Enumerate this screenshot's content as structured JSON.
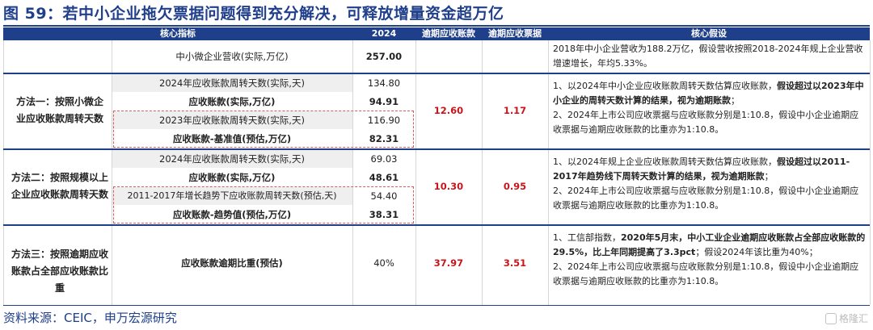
{
  "title": "图 59：若中小企业拖欠票据问题得到充分解决，可释放增量资金超万亿",
  "headers": [
    "核心指标",
    "2024",
    "逾期应收账款",
    "逾期应收票据",
    "核心假设"
  ],
  "row0": {
    "label": "中小微企业营收(实际,万亿)",
    "value": "257.00",
    "assumption": "2018年中小企业营收为188.2万亿，假设营收按照2018-2024年规上企业营收增速增长，年均5.33%。"
  },
  "method1": {
    "name": "方法一：按照小微企业应收账款周转天数",
    "rows": [
      {
        "label": "2024年应收账款周转天数(实际,天)",
        "value": "134.80"
      },
      {
        "label": "应收账款(实际,万亿)",
        "value": "94.91"
      },
      {
        "label": "2023年应收账款周转天数(实际,天)",
        "value": "116.90"
      },
      {
        "label": "应收账款-基准值(预估,万亿)",
        "value": "82.31"
      }
    ],
    "overdue_receivable": "12.60",
    "overdue_bills": "1.17",
    "assumption_1a": "1、以2024年中小企业应收账款周转天数估算应收账款，",
    "assumption_1b": "假设超过以2023年中小企业的周转天数计算的结果，视为逾期账款",
    "assumption_1c": "；",
    "assumption_2": "2、2024年上市公司应收票据与应收账款分别是1:10.8，假设中小企业逾期应收票据与逾期应收账款的比重亦为1:10.8。"
  },
  "method2": {
    "name": "方法二：按照规模以上企业应收账款周转天数",
    "rows": [
      {
        "label": "2024年应收账款周转天数(实际,天)",
        "value": "69.03"
      },
      {
        "label": "应收账款(实际,万亿)",
        "value": "48.61"
      },
      {
        "label": "2011-2017年增长趋势下应收账款周转天数(预估,天)",
        "value": "54.40"
      },
      {
        "label": "应收账款-趋势值(预估,万亿)",
        "value": "38.31"
      }
    ],
    "overdue_receivable": "10.30",
    "overdue_bills": "0.95",
    "assumption_1a": "1、以2024年规上企业应收账款周转天数估算应收账款，",
    "assumption_1b": "假设超过以2011-2017年趋势线下周转天数计算的结果，视为逾期账款",
    "assumption_1c": "；",
    "assumption_2": "2、2024年上市公司应收票据与应收账款分别是1:10.8，假设中小企业逾期应收票据与逾期应收账款的比重亦为1:10.8。"
  },
  "method3": {
    "name": "方法三：按照逾期应收账款占全部应收账款比重",
    "label": "应收账款逾期比重(预估)",
    "value": "40%",
    "overdue_receivable": "37.97",
    "overdue_bills": "3.51",
    "assumption_1a": "1、工信部指数，",
    "assumption_1b": "2020年5月末，中小工业企业逾期应收账款占全部应收账款的29.5%，比上年同期提高了3.3pct",
    "assumption_1c": "；假设2024年该比重为40%；",
    "assumption_2": "2、2024年上市公司应收票据与应收账款分别是1:10.8，假设中小企业逾期应收票据与逾期应收账款的比重亦为1:10.8。"
  },
  "source": "资料来源：CEIC，申万宏源研究",
  "watermark": "格隆汇"
}
